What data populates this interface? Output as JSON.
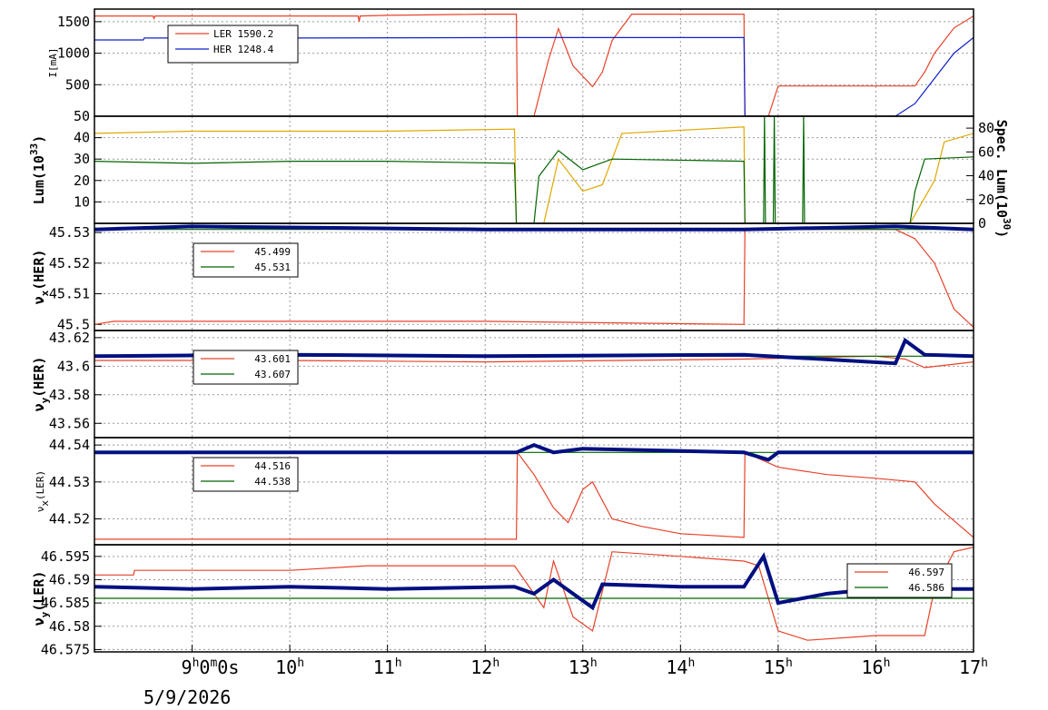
{
  "colors": {
    "ler": "#e8422a",
    "her": "#1020c8",
    "green": "#006400",
    "gold": "#e0a800",
    "navy": "#001080",
    "grid": "#999999"
  },
  "x_axis": {
    "range_hours": [
      8.0,
      17.0
    ],
    "ticks": [
      {
        "hour": 9,
        "label": "9",
        "sup": "h",
        "rest": "0",
        "rest_sup": "m",
        "rest2": "0s"
      },
      {
        "hour": 10,
        "label": "10",
        "sup": "h"
      },
      {
        "hour": 11,
        "label": "11",
        "sup": "h"
      },
      {
        "hour": 12,
        "label": "12",
        "sup": "h"
      },
      {
        "hour": 13,
        "label": "13",
        "sup": "h"
      },
      {
        "hour": 14,
        "label": "14",
        "sup": "h"
      },
      {
        "hour": 15,
        "label": "15",
        "sup": "h"
      },
      {
        "hour": 16,
        "label": "16",
        "sup": "h"
      },
      {
        "hour": 17,
        "label": "17",
        "sup": "h"
      }
    ],
    "date": "5/9/2026"
  },
  "chart_data": [
    {
      "type": "line",
      "ylabel": "I[mA]",
      "ylim": [
        0,
        1700
      ],
      "yticks": [
        "500",
        "1000",
        "1500"
      ],
      "legend": {
        "placement": "top-left",
        "entries": [
          {
            "name": "LER",
            "value": "1590.2",
            "color": "#e8422a"
          },
          {
            "name": "HER",
            "value": "1248.4",
            "color": "#1020c8"
          }
        ]
      },
      "series": [
        {
          "name": "LER",
          "color": "#e8422a",
          "points": [
            [
              8.0,
              1590
            ],
            [
              8.6,
              1590
            ],
            [
              8.61,
              1550
            ],
            [
              8.62,
              1590
            ],
            [
              10.7,
              1590
            ],
            [
              10.71,
              1500
            ],
            [
              10.72,
              1590
            ],
            [
              11.0,
              1600
            ],
            [
              12.0,
              1620
            ],
            [
              12.32,
              1620
            ],
            [
              12.33,
              0
            ],
            [
              12.5,
              0
            ],
            [
              12.65,
              900
            ],
            [
              12.75,
              1390
            ],
            [
              12.9,
              800
            ],
            [
              13.1,
              470
            ],
            [
              13.2,
              700
            ],
            [
              13.3,
              1200
            ],
            [
              13.5,
              1620
            ],
            [
              14.65,
              1620
            ],
            [
              14.66,
              0
            ],
            [
              14.9,
              0
            ],
            [
              15.0,
              480
            ],
            [
              16.4,
              480
            ],
            [
              16.5,
              700
            ],
            [
              16.6,
              1000
            ],
            [
              16.8,
              1400
            ],
            [
              17.0,
              1590
            ]
          ]
        },
        {
          "name": "HER",
          "color": "#1020c8",
          "points": [
            [
              8.0,
              1210
            ],
            [
              8.5,
              1210
            ],
            [
              8.51,
              1240
            ],
            [
              10.0,
              1240
            ],
            [
              12.3,
              1248
            ],
            [
              14.65,
              1248
            ],
            [
              14.66,
              0
            ],
            [
              16.2,
              0
            ],
            [
              16.4,
              200
            ],
            [
              16.6,
              600
            ],
            [
              16.8,
              1000
            ],
            [
              17.0,
              1248
            ]
          ]
        }
      ]
    },
    {
      "type": "line",
      "ylabel": "Lum(10",
      "ylabel_sup": "33",
      "ylabel_tail": ")",
      "ylim": [
        0,
        50
      ],
      "yticks": [
        "10",
        "20",
        "30",
        "40",
        "50"
      ],
      "y2label": "Spec. Lum(10",
      "y2label_sup": "30",
      "y2label_tail": ")",
      "y2lim": [
        0,
        90
      ],
      "y2ticks": [
        "0",
        "20",
        "40",
        "60",
        "80"
      ],
      "series": [
        {
          "name": "Lum",
          "color": "#e0a800",
          "points": [
            [
              8.0,
              42
            ],
            [
              9.0,
              43
            ],
            [
              10.0,
              43
            ],
            [
              11.0,
              43
            ],
            [
              12.3,
              44
            ],
            [
              12.32,
              0
            ],
            [
              12.6,
              0
            ],
            [
              12.75,
              30
            ],
            [
              13.0,
              15
            ],
            [
              13.2,
              18
            ],
            [
              13.4,
              42
            ],
            [
              14.65,
              45
            ],
            [
              14.66,
              0
            ],
            [
              16.35,
              0
            ],
            [
              16.6,
              20
            ],
            [
              16.7,
              38
            ],
            [
              17.0,
              42
            ]
          ]
        },
        {
          "name": "Spec. Lum",
          "color": "#006400",
          "points": [
            [
              8.0,
              29
            ],
            [
              9.0,
              28
            ],
            [
              10.0,
              29
            ],
            [
              11.0,
              29
            ],
            [
              12.3,
              28
            ],
            [
              12.32,
              0
            ],
            [
              12.5,
              0
            ],
            [
              12.55,
              22
            ],
            [
              12.75,
              34
            ],
            [
              13.0,
              25
            ],
            [
              13.3,
              30
            ],
            [
              14.65,
              29
            ],
            [
              14.66,
              0
            ],
            [
              14.85,
              0
            ],
            [
              14.86,
              50
            ],
            [
              14.87,
              0
            ],
            [
              14.95,
              0
            ],
            [
              14.96,
              50
            ],
            [
              14.97,
              0
            ],
            [
              15.25,
              0
            ],
            [
              15.26,
              50
            ],
            [
              15.27,
              0
            ],
            [
              16.35,
              0
            ],
            [
              16.4,
              15
            ],
            [
              16.5,
              30
            ],
            [
              17.0,
              31
            ]
          ]
        }
      ]
    },
    {
      "type": "line",
      "ylabel": "ν",
      "ylabel_sub": "x",
      "ylabel_tail": "(HER)",
      "ylim": [
        45.498,
        45.533
      ],
      "yticks": [
        "45.5",
        "45.51",
        "45.52",
        "45.53"
      ],
      "legend": {
        "placement": "top-left",
        "entries": [
          {
            "name": "",
            "value": "45.499",
            "color": "#e8422a"
          },
          {
            "name": "",
            "value": "45.531",
            "color": "#006400"
          }
        ]
      },
      "series": [
        {
          "name": "",
          "color": "#e8422a",
          "points": [
            [
              8.0,
              45.5
            ],
            [
              8.2,
              45.501
            ],
            [
              10.0,
              45.501
            ],
            [
              12.0,
              45.501
            ],
            [
              14.65,
              45.5
            ],
            [
              14.66,
              45.531
            ],
            [
              16.2,
              45.531
            ],
            [
              16.4,
              45.528
            ],
            [
              16.6,
              45.52
            ],
            [
              16.8,
              45.505
            ],
            [
              17.0,
              45.499
            ]
          ]
        },
        {
          "name": "",
          "color": "#006400",
          "points": [
            [
              8.0,
              45.531
            ],
            [
              17.0,
              45.531
            ]
          ]
        },
        {
          "name": "",
          "color": "#001080",
          "points": [
            [
              8.0,
              45.531
            ],
            [
              9.0,
              45.532
            ],
            [
              12.0,
              45.531
            ],
            [
              14.65,
              45.531
            ],
            [
              16.2,
              45.532
            ],
            [
              17.0,
              45.531
            ]
          ]
        }
      ]
    },
    {
      "type": "line",
      "ylabel": "ν",
      "ylabel_sub": "y",
      "ylabel_tail": "(HER)",
      "ylim": [
        43.55,
        43.625
      ],
      "yticks": [
        "43.56",
        "43.58",
        "43.6",
        "43.62"
      ],
      "legend": {
        "placement": "top-left",
        "entries": [
          {
            "name": "",
            "value": "43.601",
            "color": "#e8422a"
          },
          {
            "name": "",
            "value": "43.607",
            "color": "#006400"
          }
        ]
      },
      "series": [
        {
          "name": "",
          "color": "#e8422a",
          "points": [
            [
              8.0,
              43.604
            ],
            [
              10.0,
              43.604
            ],
            [
              12.0,
              43.603
            ],
            [
              14.65,
              43.605
            ],
            [
              16.0,
              43.607
            ],
            [
              16.3,
              43.605
            ],
            [
              16.5,
              43.599
            ],
            [
              17.0,
              43.603
            ]
          ]
        },
        {
          "name": "",
          "color": "#006400",
          "points": [
            [
              8.0,
              43.607
            ],
            [
              17.0,
              43.607
            ]
          ]
        },
        {
          "name": "",
          "color": "#001080",
          "points": [
            [
              8.0,
              43.607
            ],
            [
              10.0,
              43.608
            ],
            [
              12.0,
              43.607
            ],
            [
              14.65,
              43.608
            ],
            [
              16.2,
              43.602
            ],
            [
              16.3,
              43.618
            ],
            [
              16.5,
              43.608
            ],
            [
              17.0,
              43.607
            ]
          ]
        }
      ]
    },
    {
      "type": "line",
      "ylabel": "ν",
      "ylabel_sub": "x",
      "ylabel_tail": "(LER)",
      "ylim": [
        44.513,
        44.542
      ],
      "yticks": [
        "44.52",
        "44.53",
        "44.54"
      ],
      "legend": {
        "placement": "top-left",
        "entries": [
          {
            "name": "",
            "value": "44.516",
            "color": "#e8422a"
          },
          {
            "name": "",
            "value": "44.538",
            "color": "#006400"
          }
        ]
      },
      "series": [
        {
          "name": "",
          "color": "#e8422a",
          "points": [
            [
              8.0,
              44.5145
            ],
            [
              12.32,
              44.5145
            ],
            [
              12.33,
              44.538
            ],
            [
              12.5,
              44.532
            ],
            [
              12.7,
              44.523
            ],
            [
              12.85,
              44.519
            ],
            [
              13.0,
              44.528
            ],
            [
              13.1,
              44.53
            ],
            [
              13.3,
              44.52
            ],
            [
              13.6,
              44.518
            ],
            [
              14.0,
              44.516
            ],
            [
              14.65,
              44.515
            ],
            [
              14.66,
              44.538
            ],
            [
              15.0,
              44.534
            ],
            [
              15.5,
              44.532
            ],
            [
              16.0,
              44.531
            ],
            [
              16.4,
              44.53
            ],
            [
              16.6,
              44.524
            ],
            [
              17.0,
              44.515
            ]
          ]
        },
        {
          "name": "",
          "color": "#006400",
          "points": [
            [
              8.0,
              44.538
            ],
            [
              17.0,
              44.538
            ]
          ]
        },
        {
          "name": "",
          "color": "#001080",
          "points": [
            [
              8.0,
              44.538
            ],
            [
              12.32,
              44.538
            ],
            [
              12.5,
              44.54
            ],
            [
              12.7,
              44.538
            ],
            [
              13.0,
              44.539
            ],
            [
              14.65,
              44.538
            ],
            [
              14.9,
              44.536
            ],
            [
              15.0,
              44.538
            ],
            [
              17.0,
              44.538
            ]
          ]
        }
      ]
    },
    {
      "type": "line",
      "ylabel": "ν",
      "ylabel_sub": "y",
      "ylabel_tail": "(LER)",
      "ylim": [
        46.5745,
        46.5975
      ],
      "yticks": [
        "46.575",
        "46.58",
        "46.585",
        "46.59",
        "46.595"
      ],
      "legend": {
        "placement": "top-right",
        "entries": [
          {
            "name": "",
            "value": "46.597",
            "color": "#e8422a"
          },
          {
            "name": "",
            "value": "46.586",
            "color": "#006400"
          }
        ]
      },
      "series": [
        {
          "name": "",
          "color": "#e8422a",
          "points": [
            [
              8.0,
              46.591
            ],
            [
              8.4,
              46.591
            ],
            [
              8.41,
              46.592
            ],
            [
              10.0,
              46.592
            ],
            [
              10.8,
              46.593
            ],
            [
              12.3,
              46.593
            ],
            [
              12.5,
              46.587
            ],
            [
              12.6,
              46.584
            ],
            [
              12.7,
              46.594
            ],
            [
              12.9,
              46.582
            ],
            [
              13.1,
              46.579
            ],
            [
              13.3,
              46.596
            ],
            [
              14.0,
              46.595
            ],
            [
              14.65,
              46.594
            ],
            [
              14.8,
              46.593
            ],
            [
              15.0,
              46.579
            ],
            [
              15.3,
              46.577
            ],
            [
              16.0,
              46.578
            ],
            [
              16.5,
              46.578
            ],
            [
              16.6,
              46.588
            ],
            [
              16.8,
              46.596
            ],
            [
              17.0,
              46.597
            ]
          ]
        },
        {
          "name": "",
          "color": "#006400",
          "points": [
            [
              8.0,
              46.586
            ],
            [
              17.0,
              46.586
            ]
          ]
        },
        {
          "name": "",
          "color": "#001080",
          "points": [
            [
              8.0,
              46.5885
            ],
            [
              9.0,
              46.588
            ],
            [
              10.0,
              46.5885
            ],
            [
              11.0,
              46.588
            ],
            [
              12.3,
              46.5885
            ],
            [
              12.5,
              46.587
            ],
            [
              12.7,
              46.59
            ],
            [
              12.9,
              46.587
            ],
            [
              13.1,
              46.584
            ],
            [
              13.2,
              46.589
            ],
            [
              14.0,
              46.5885
            ],
            [
              14.65,
              46.5885
            ],
            [
              14.85,
              46.595
            ],
            [
              15.0,
              46.585
            ],
            [
              15.5,
              46.587
            ],
            [
              16.0,
              46.588
            ],
            [
              16.5,
              46.588
            ],
            [
              17.0,
              46.588
            ]
          ]
        }
      ]
    }
  ]
}
